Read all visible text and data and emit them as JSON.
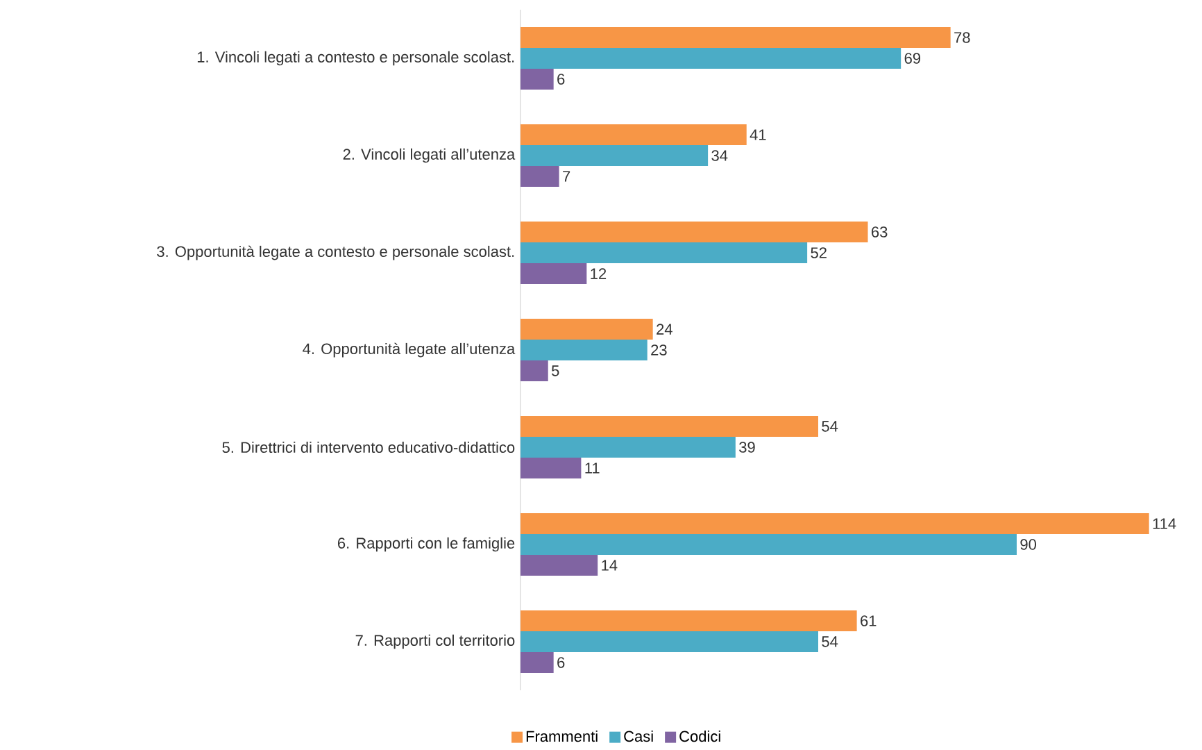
{
  "chart_data": {
    "type": "bar",
    "orientation": "horizontal",
    "data_labels": true,
    "legend": "bottom",
    "categories": [
      "1. Vincoli legati a contesto e personale scolast.",
      "2. Vincoli legati all’utenza",
      "3. Opportunità legate a contesto e personale scolast.",
      "4. Opportunità legate all’utenza",
      "5. Direttrici di intervento educativo-didattico",
      "6. Rapporti con le famiglie",
      "7. Rapporti col territorio"
    ],
    "series": [
      {
        "name": "Frammenti",
        "color": "#f79646",
        "values": [
          78,
          41,
          63,
          24,
          54,
          114,
          61
        ]
      },
      {
        "name": "Casi",
        "color": "#4bacc6",
        "values": [
          69,
          34,
          52,
          23,
          39,
          90,
          54
        ]
      },
      {
        "name": "Codici",
        "color": "#8064a2",
        "values": [
          6,
          7,
          12,
          5,
          11,
          14,
          6
        ]
      }
    ]
  }
}
